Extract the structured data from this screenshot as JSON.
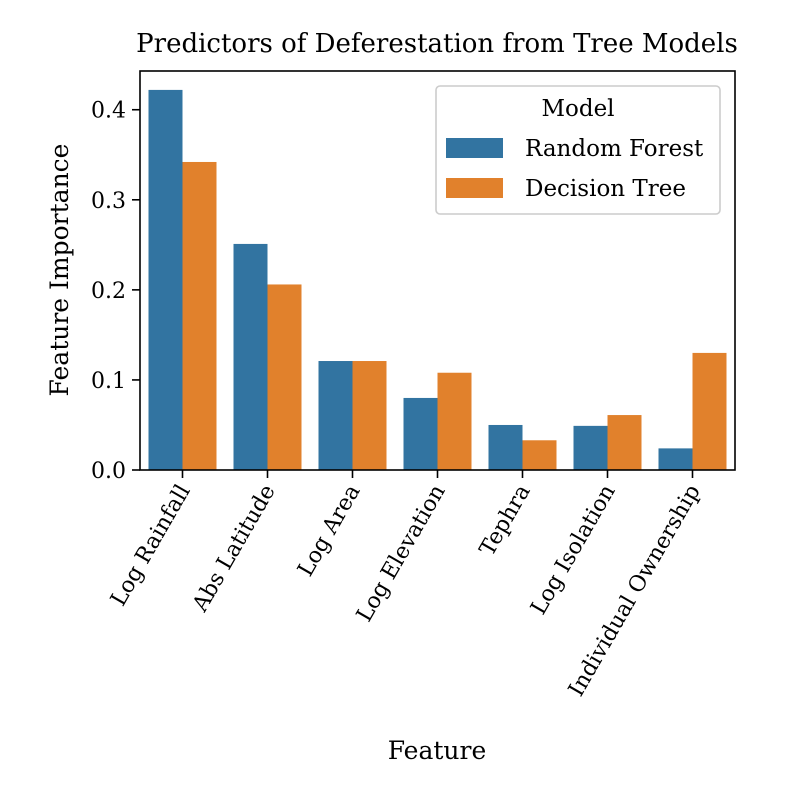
{
  "chart_data": {
    "type": "bar",
    "title": "Predictors of Deferestation from Tree Models",
    "xlabel": "Feature",
    "ylabel": "Feature Importance",
    "categories": [
      "Log Rainfall",
      "Abs Latitude",
      "Log Area",
      "Log Elevation",
      "Tephra",
      "Log Isolation",
      "Individual Ownership"
    ],
    "series": [
      {
        "name": "Random Forest",
        "color": "#3274a1",
        "values": [
          0.422,
          0.251,
          0.121,
          0.08,
          0.05,
          0.049,
          0.024
        ]
      },
      {
        "name": "Decision Tree",
        "color": "#e1812c",
        "values": [
          0.342,
          0.206,
          0.121,
          0.108,
          0.033,
          0.061,
          0.13
        ]
      }
    ],
    "ylim": [
      0,
      0.443
    ],
    "yticks": [
      0.0,
      0.1,
      0.2,
      0.3,
      0.4
    ],
    "ytick_labels": [
      "0.0",
      "0.1",
      "0.2",
      "0.3",
      "0.4"
    ],
    "legend": {
      "title": "Model",
      "position": "top-right"
    },
    "grid": false
  }
}
